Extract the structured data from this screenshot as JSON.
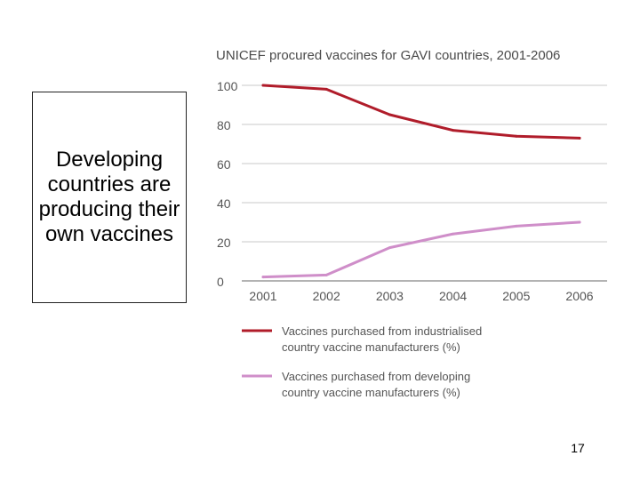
{
  "slide": {
    "callout_text": "Developing countries are producing their own vaccines",
    "page_number": "17"
  },
  "chart_data": {
    "type": "line",
    "title": "UNICEF procured vaccines for GAVI countries, 2001-2006",
    "x": [
      "2001",
      "2002",
      "2003",
      "2004",
      "2005",
      "2006"
    ],
    "ylim": [
      0,
      100
    ],
    "yticks": [
      0,
      20,
      40,
      60,
      80,
      100
    ],
    "grid": true,
    "legend_placement": "bottom",
    "series": [
      {
        "name": "Vaccines purchased from industrialised country vaccine manufacturers (%)",
        "legend_lines": [
          "Vaccines purchased from industrialised",
          "country vaccine manufacturers (%)"
        ],
        "color": "#b01c2a",
        "values": [
          100,
          98,
          85,
          77,
          74,
          73
        ]
      },
      {
        "name": "Vaccines purchased from developing country vaccine manufacturers (%)",
        "legend_lines": [
          "Vaccines purchased from developing",
          "country vaccine manufacturers (%)"
        ],
        "color": "#cf8ec9",
        "values": [
          2,
          3,
          17,
          24,
          28,
          30
        ]
      }
    ]
  }
}
